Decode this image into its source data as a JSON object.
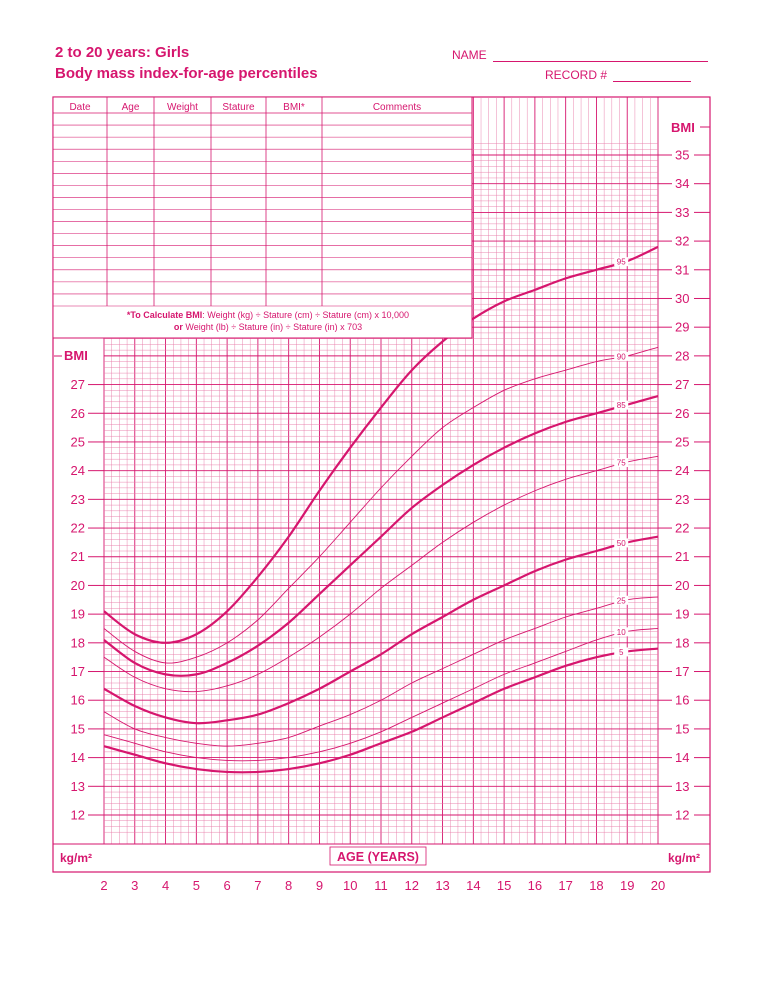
{
  "header": {
    "title_line1": "2 to 20 years: Girls",
    "title_line2": "Body mass index-for-age percentiles",
    "name_label": "NAME",
    "record_label": "RECORD #"
  },
  "record_table": {
    "columns": [
      "Date",
      "Age",
      "Weight",
      "Stature",
      "BMI*",
      "Comments"
    ],
    "formula_line1_bold": "*To Calculate BMI",
    "formula_line1_rest": ": Weight (kg) ÷ Stature (cm) ÷ Stature (cm) x 10,000",
    "formula_line2_bold": "or",
    "formula_line2_rest": " Weight (lb) ÷ Stature (in) ÷ Stature (in) x 703"
  },
  "colors": {
    "accent": "#d6166e",
    "grid": "#e87aa8"
  },
  "chart_data": {
    "type": "line",
    "xlabel": "AGE (YEARS)",
    "ylabel": "BMI",
    "unit_label": "kg/m²",
    "xlim": [
      2,
      20
    ],
    "ylim": [
      12,
      35
    ],
    "x_ticks": [
      2,
      3,
      4,
      5,
      6,
      7,
      8,
      9,
      10,
      11,
      12,
      13,
      14,
      15,
      16,
      17,
      18,
      19,
      20
    ],
    "left_y_ticks": [
      12,
      13,
      14,
      15,
      16,
      17,
      18,
      19,
      20,
      21,
      22,
      23,
      24,
      25,
      26,
      27
    ],
    "right_y_ticks": [
      12,
      13,
      14,
      15,
      16,
      17,
      18,
      19,
      20,
      21,
      22,
      23,
      24,
      25,
      26,
      27,
      28,
      29,
      30,
      31,
      32,
      33,
      34,
      35
    ],
    "grid": true,
    "x": [
      2,
      3,
      4,
      5,
      6,
      7,
      8,
      9,
      10,
      11,
      12,
      13,
      14,
      15,
      16,
      17,
      18,
      19,
      20
    ],
    "series": [
      {
        "name": "95",
        "bold": true,
        "values": [
          19.1,
          18.3,
          18.0,
          18.3,
          19.1,
          20.3,
          21.7,
          23.3,
          24.8,
          26.2,
          27.5,
          28.5,
          29.3,
          29.9,
          30.3,
          30.7,
          31.0,
          31.3,
          31.8
        ]
      },
      {
        "name": "90",
        "bold": false,
        "values": [
          18.5,
          17.7,
          17.3,
          17.5,
          18.0,
          18.8,
          19.9,
          21.0,
          22.2,
          23.4,
          24.5,
          25.5,
          26.2,
          26.8,
          27.2,
          27.5,
          27.8,
          28.0,
          28.3
        ]
      },
      {
        "name": "85",
        "bold": true,
        "values": [
          18.1,
          17.3,
          16.9,
          16.9,
          17.3,
          17.9,
          18.7,
          19.7,
          20.7,
          21.7,
          22.7,
          23.5,
          24.2,
          24.8,
          25.3,
          25.7,
          26.0,
          26.3,
          26.6
        ]
      },
      {
        "name": "75",
        "bold": false,
        "values": [
          17.5,
          16.8,
          16.4,
          16.3,
          16.5,
          16.9,
          17.5,
          18.2,
          19.0,
          19.9,
          20.7,
          21.5,
          22.2,
          22.8,
          23.3,
          23.7,
          24.0,
          24.3,
          24.5
        ]
      },
      {
        "name": "50",
        "bold": true,
        "values": [
          16.4,
          15.8,
          15.4,
          15.2,
          15.3,
          15.5,
          15.9,
          16.4,
          17.0,
          17.6,
          18.3,
          18.9,
          19.5,
          20.0,
          20.5,
          20.9,
          21.2,
          21.5,
          21.7
        ]
      },
      {
        "name": "25",
        "bold": false,
        "values": [
          15.6,
          15.0,
          14.7,
          14.5,
          14.4,
          14.5,
          14.7,
          15.1,
          15.5,
          16.0,
          16.6,
          17.1,
          17.6,
          18.1,
          18.5,
          18.9,
          19.2,
          19.5,
          19.6
        ]
      },
      {
        "name": "10",
        "bold": false,
        "values": [
          14.8,
          14.5,
          14.2,
          14.0,
          13.9,
          13.9,
          14.0,
          14.2,
          14.5,
          14.9,
          15.4,
          15.9,
          16.4,
          16.9,
          17.3,
          17.7,
          18.1,
          18.4,
          18.5
        ]
      },
      {
        "name": "5",
        "bold": true,
        "values": [
          14.4,
          14.1,
          13.8,
          13.6,
          13.5,
          13.5,
          13.6,
          13.8,
          14.1,
          14.5,
          14.9,
          15.4,
          15.9,
          16.4,
          16.8,
          17.2,
          17.5,
          17.7,
          17.8
        ]
      }
    ]
  }
}
